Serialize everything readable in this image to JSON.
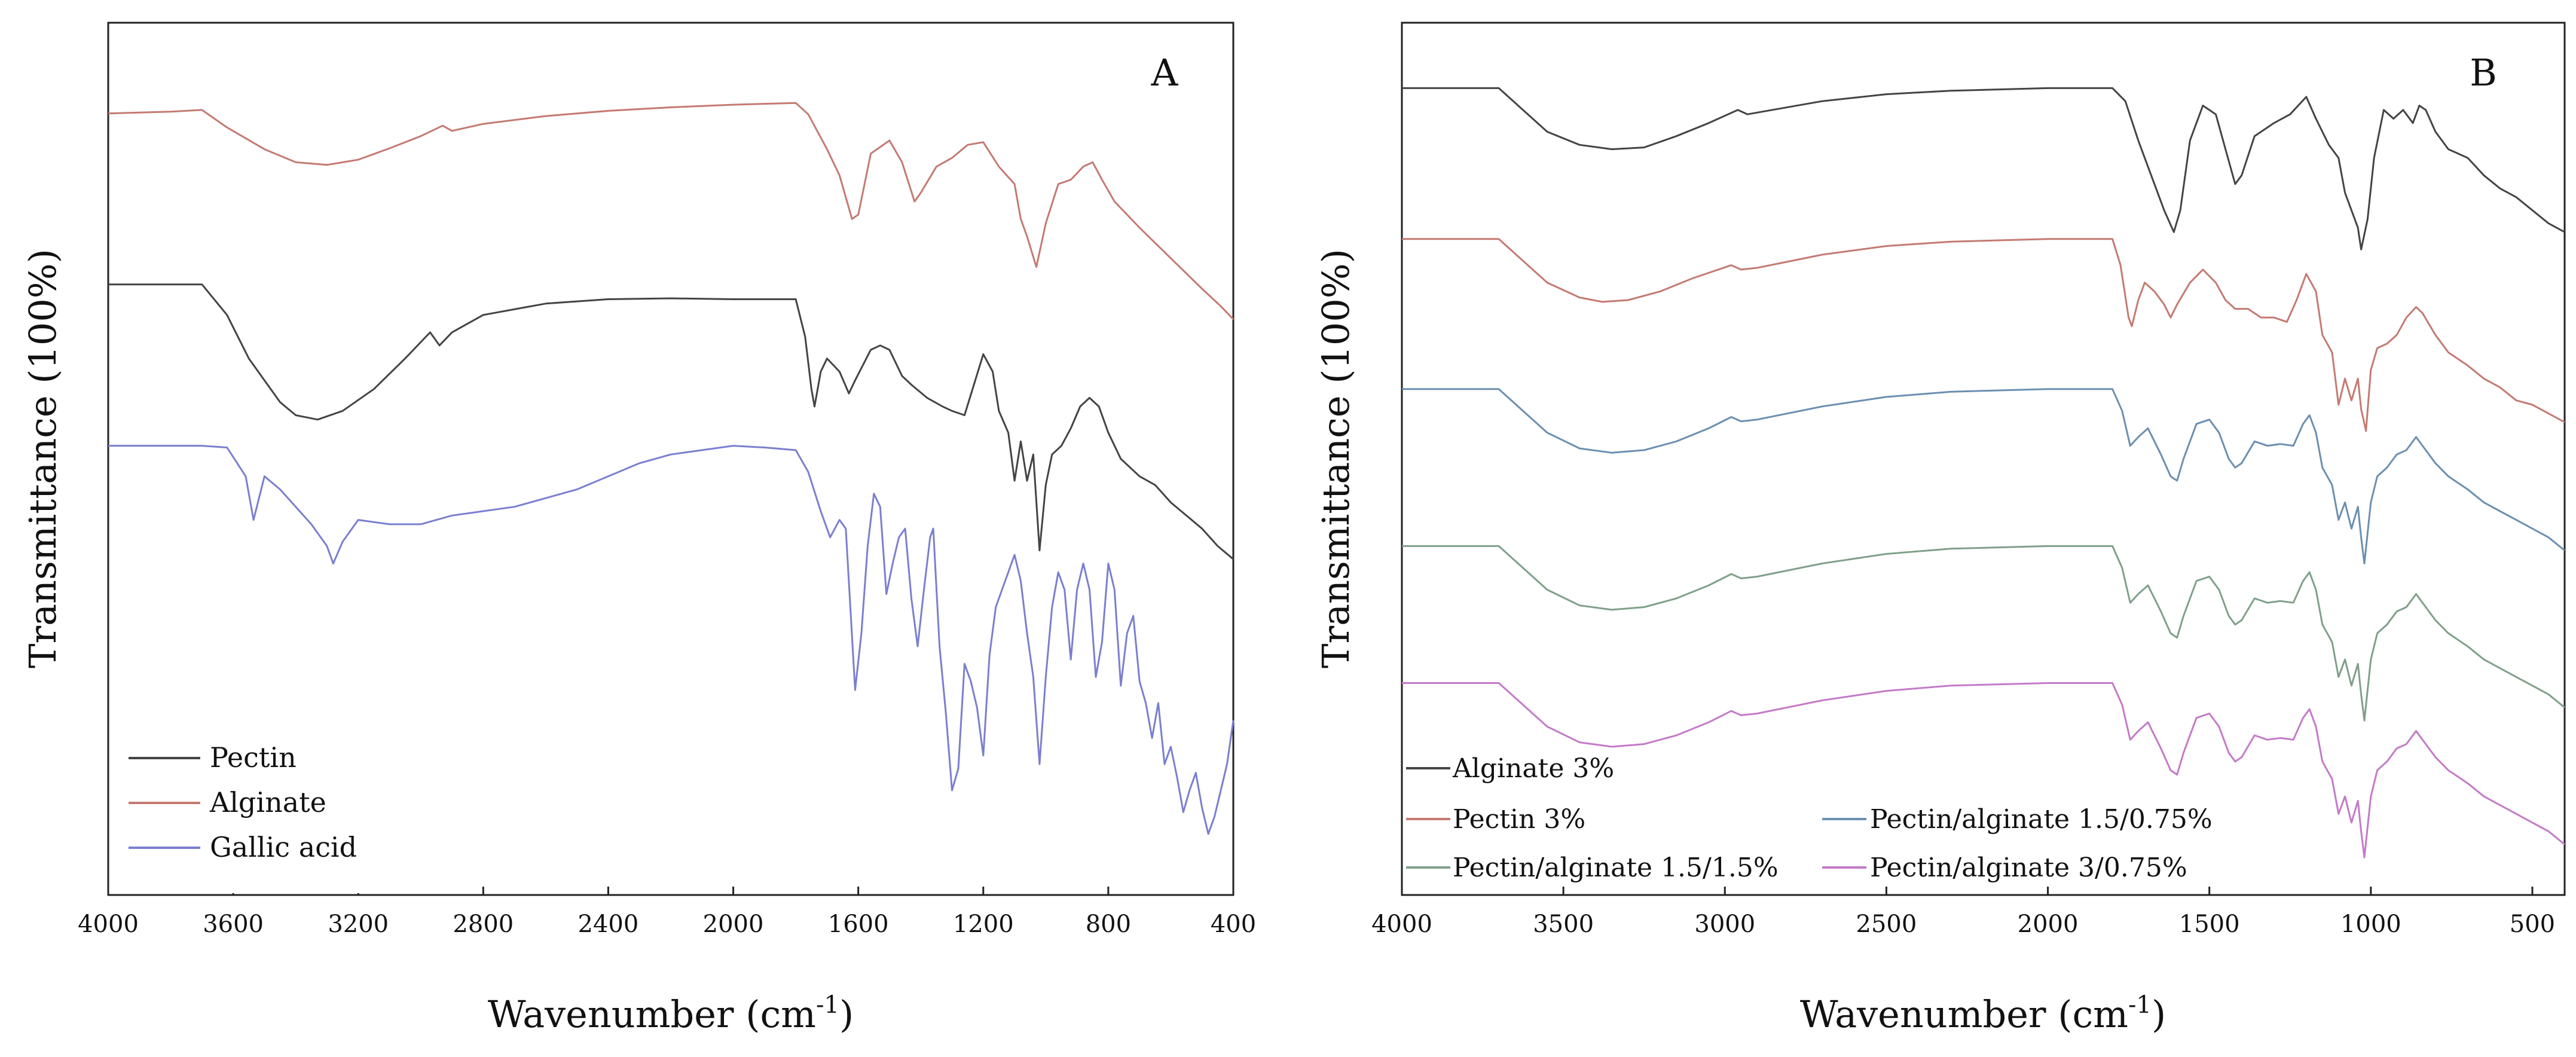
{
  "chart_data": [
    {
      "panel": "A",
      "type": "line",
      "title": "",
      "panel_label": "A",
      "xlabel": "Wavenumber (cm-1)",
      "xlabel_main": "Wavenumber (cm",
      "xlabel_sup": "-1",
      "xlabel_close": ")",
      "ylabel": "Transmittance (100%)",
      "xlim": [
        4000,
        400
      ],
      "ylim": [
        0,
        100
      ],
      "x_ticks": [
        4000,
        3600,
        3200,
        2800,
        2400,
        2000,
        1600,
        1200,
        800,
        400
      ],
      "x_tick_labels": [
        "4000",
        "3600",
        "3200",
        "2800",
        "2400",
        "2000",
        "1600",
        "1200",
        "800",
        "400"
      ],
      "legend_position": "bottom-left",
      "legend": [
        {
          "name": "Pectin",
          "color": "#444444"
        },
        {
          "name": "Alginate",
          "color": "#c47a72"
        },
        {
          "name": "Gallic acid",
          "color": "#7a7fcf"
        }
      ],
      "series": [
        {
          "name": "Alginate",
          "color": "#c47a72",
          "points": [
            [
              4000,
              89.6
            ],
            [
              3800,
              89.8
            ],
            [
              3700,
              90.0
            ],
            [
              3620,
              88.0
            ],
            [
              3500,
              85.5
            ],
            [
              3400,
              84.0
            ],
            [
              3300,
              83.7
            ],
            [
              3200,
              84.3
            ],
            [
              3100,
              85.6
            ],
            [
              3000,
              87.0
            ],
            [
              2930,
              88.2
            ],
            [
              2900,
              87.6
            ],
            [
              2800,
              88.4
            ],
            [
              2600,
              89.3
            ],
            [
              2400,
              89.9
            ],
            [
              2200,
              90.3
            ],
            [
              2000,
              90.6
            ],
            [
              1800,
              90.8
            ],
            [
              1760,
              89.5
            ],
            [
              1700,
              85.5
            ],
            [
              1660,
              82.5
            ],
            [
              1620,
              77.5
            ],
            [
              1600,
              78.0
            ],
            [
              1560,
              85.0
            ],
            [
              1500,
              86.5
            ],
            [
              1460,
              84.0
            ],
            [
              1420,
              79.5
            ],
            [
              1400,
              80.5
            ],
            [
              1350,
              83.5
            ],
            [
              1300,
              84.5
            ],
            [
              1250,
              86.0
            ],
            [
              1200,
              86.3
            ],
            [
              1150,
              83.5
            ],
            [
              1100,
              81.5
            ],
            [
              1080,
              77.5
            ],
            [
              1060,
              75.5
            ],
            [
              1030,
              72.0
            ],
            [
              1000,
              77.0
            ],
            [
              960,
              81.5
            ],
            [
              920,
              82.0
            ],
            [
              880,
              83.5
            ],
            [
              850,
              84.0
            ],
            [
              820,
              82.0
            ],
            [
              780,
              79.5
            ],
            [
              700,
              76.5
            ],
            [
              600,
              73.0
            ],
            [
              500,
              69.5
            ],
            [
              440,
              67.5
            ],
            [
              400,
              66.0
            ]
          ]
        },
        {
          "name": "Pectin",
          "color": "#444444",
          "points": [
            [
              4000,
              70.0
            ],
            [
              3800,
              70.0
            ],
            [
              3700,
              70.0
            ],
            [
              3620,
              66.5
            ],
            [
              3550,
              61.5
            ],
            [
              3450,
              56.5
            ],
            [
              3400,
              55.0
            ],
            [
              3330,
              54.5
            ],
            [
              3250,
              55.5
            ],
            [
              3150,
              58.0
            ],
            [
              3050,
              61.5
            ],
            [
              2970,
              64.5
            ],
            [
              2940,
              63.0
            ],
            [
              2900,
              64.5
            ],
            [
              2800,
              66.5
            ],
            [
              2600,
              67.8
            ],
            [
              2400,
              68.3
            ],
            [
              2200,
              68.4
            ],
            [
              2000,
              68.3
            ],
            [
              1800,
              68.3
            ],
            [
              1770,
              64.0
            ],
            [
              1750,
              58.0
            ],
            [
              1740,
              56.0
            ],
            [
              1720,
              60.0
            ],
            [
              1700,
              61.5
            ],
            [
              1660,
              60.0
            ],
            [
              1630,
              57.5
            ],
            [
              1610,
              59.0
            ],
            [
              1560,
              62.5
            ],
            [
              1530,
              63.0
            ],
            [
              1500,
              62.5
            ],
            [
              1460,
              59.5
            ],
            [
              1430,
              58.5
            ],
            [
              1380,
              57.0
            ],
            [
              1330,
              56.0
            ],
            [
              1300,
              55.5
            ],
            [
              1260,
              55.0
            ],
            [
              1230,
              58.5
            ],
            [
              1200,
              62.0
            ],
            [
              1170,
              60.0
            ],
            [
              1150,
              55.5
            ],
            [
              1120,
              53.0
            ],
            [
              1100,
              47.5
            ],
            [
              1080,
              52.0
            ],
            [
              1060,
              47.5
            ],
            [
              1040,
              50.5
            ],
            [
              1020,
              39.5
            ],
            [
              1000,
              47.0
            ],
            [
              980,
              50.5
            ],
            [
              950,
              51.5
            ],
            [
              920,
              53.5
            ],
            [
              890,
              56.0
            ],
            [
              860,
              57.0
            ],
            [
              830,
              56.0
            ],
            [
              800,
              53.0
            ],
            [
              760,
              50.0
            ],
            [
              700,
              48.0
            ],
            [
              650,
              47.0
            ],
            [
              600,
              45.0
            ],
            [
              500,
              42.0
            ],
            [
              450,
              40.0
            ],
            [
              400,
              38.5
            ]
          ]
        },
        {
          "name": "Gallic acid",
          "color": "#7a7fcf",
          "points": [
            [
              4000,
              51.5
            ],
            [
              3800,
              51.5
            ],
            [
              3700,
              51.5
            ],
            [
              3620,
              51.3
            ],
            [
              3560,
              48.0
            ],
            [
              3535,
              43.0
            ],
            [
              3500,
              48.0
            ],
            [
              3450,
              46.5
            ],
            [
              3400,
              44.5
            ],
            [
              3350,
              42.5
            ],
            [
              3300,
              40.0
            ],
            [
              3280,
              38.0
            ],
            [
              3250,
              40.5
            ],
            [
              3200,
              43.0
            ],
            [
              3100,
              42.5
            ],
            [
              3000,
              42.5
            ],
            [
              2900,
              43.5
            ],
            [
              2800,
              44.0
            ],
            [
              2700,
              44.5
            ],
            [
              2600,
              45.5
            ],
            [
              2500,
              46.5
            ],
            [
              2400,
              48.0
            ],
            [
              2300,
              49.5
            ],
            [
              2200,
              50.5
            ],
            [
              2100,
              51.0
            ],
            [
              2000,
              51.5
            ],
            [
              1900,
              51.3
            ],
            [
              1800,
              51.0
            ],
            [
              1760,
              48.5
            ],
            [
              1720,
              44.0
            ],
            [
              1690,
              41.0
            ],
            [
              1660,
              43.0
            ],
            [
              1640,
              42.0
            ],
            [
              1610,
              23.5
            ],
            [
              1590,
              30.0
            ],
            [
              1570,
              40.0
            ],
            [
              1550,
              46.0
            ],
            [
              1530,
              44.5
            ],
            [
              1510,
              34.5
            ],
            [
              1490,
              38.0
            ],
            [
              1470,
              41.0
            ],
            [
              1450,
              42.0
            ],
            [
              1430,
              34.0
            ],
            [
              1410,
              28.5
            ],
            [
              1390,
              35.0
            ],
            [
              1370,
              41.0
            ],
            [
              1360,
              42.0
            ],
            [
              1340,
              28.5
            ],
            [
              1320,
              21.0
            ],
            [
              1300,
              12.0
            ],
            [
              1280,
              14.5
            ],
            [
              1260,
              26.5
            ],
            [
              1240,
              24.5
            ],
            [
              1220,
              21.5
            ],
            [
              1200,
              16.0
            ],
            [
              1180,
              27.5
            ],
            [
              1160,
              33.0
            ],
            [
              1140,
              35.0
            ],
            [
              1120,
              37.0
            ],
            [
              1100,
              39.0
            ],
            [
              1080,
              36.0
            ],
            [
              1060,
              30.0
            ],
            [
              1040,
              25.0
            ],
            [
              1020,
              15.0
            ],
            [
              1000,
              25.0
            ],
            [
              980,
              33.0
            ],
            [
              960,
              37.0
            ],
            [
              940,
              35.0
            ],
            [
              920,
              27.0
            ],
            [
              900,
              35.0
            ],
            [
              880,
              38.0
            ],
            [
              860,
              35.0
            ],
            [
              840,
              25.0
            ],
            [
              820,
              29.0
            ],
            [
              800,
              38.0
            ],
            [
              780,
              35.0
            ],
            [
              760,
              24.0
            ],
            [
              740,
              30.0
            ],
            [
              720,
              32.0
            ],
            [
              700,
              24.5
            ],
            [
              680,
              22.0
            ],
            [
              660,
              18.0
            ],
            [
              640,
              22.0
            ],
            [
              620,
              15.0
            ],
            [
              600,
              17.0
            ],
            [
              580,
              13.5
            ],
            [
              560,
              9.5
            ],
            [
              540,
              12.0
            ],
            [
              520,
              14.0
            ],
            [
              500,
              10.0
            ],
            [
              480,
              7.0
            ],
            [
              460,
              9.0
            ],
            [
              440,
              12.0
            ],
            [
              420,
              15.0
            ],
            [
              400,
              20.0
            ]
          ]
        }
      ]
    },
    {
      "panel": "B",
      "type": "line",
      "title": "",
      "panel_label": "B",
      "xlabel": "Wavenumber (cm-1)",
      "xlabel_main": "Wavenumber (cm",
      "xlabel_sup": "-1",
      "xlabel_close": ")",
      "ylabel": "Transmittance (100%)",
      "xlim": [
        4000,
        400
      ],
      "ylim": [
        0,
        100
      ],
      "x_ticks": [
        4000,
        3500,
        3000,
        2500,
        2000,
        1500,
        1000,
        500
      ],
      "x_tick_labels": [
        "4000",
        "3500",
        "3000",
        "2500",
        "2000",
        "1500",
        "1000",
        "500"
      ],
      "legend_position": "bottom-left",
      "legend": [
        {
          "name": "Alginate 3%",
          "color": "#444444"
        },
        {
          "name": "Pectin 3%",
          "color": "#c47a72"
        },
        {
          "name": "Pectin/alginate 1.5/0.75%",
          "color": "#6c8fb0"
        },
        {
          "name": "Pectin/alginate 1.5/1.5%",
          "color": "#7fa08a"
        },
        {
          "name": "Pectin/alginate 3/0.75%",
          "color": "#c47ac8"
        }
      ],
      "series": [
        {
          "name": "Alginate 3%",
          "color": "#444444",
          "offset": 92.5,
          "shape": "alginate"
        },
        {
          "name": "Pectin 3%",
          "color": "#c47a72",
          "offset": 75.2,
          "shape": "pectin"
        },
        {
          "name": "Pectin/alginate 1.5/0.75%",
          "color": "#6c8fb0",
          "offset": 58.0,
          "shape": "blend"
        },
        {
          "name": "Pectin/alginate 1.5/1.5%",
          "color": "#7fa08a",
          "offset": 40.0,
          "shape": "blend"
        },
        {
          "name": "Pectin/alginate 3/0.75%",
          "color": "#c47ac8",
          "offset": 24.3,
          "shape": "blend"
        }
      ]
    }
  ]
}
